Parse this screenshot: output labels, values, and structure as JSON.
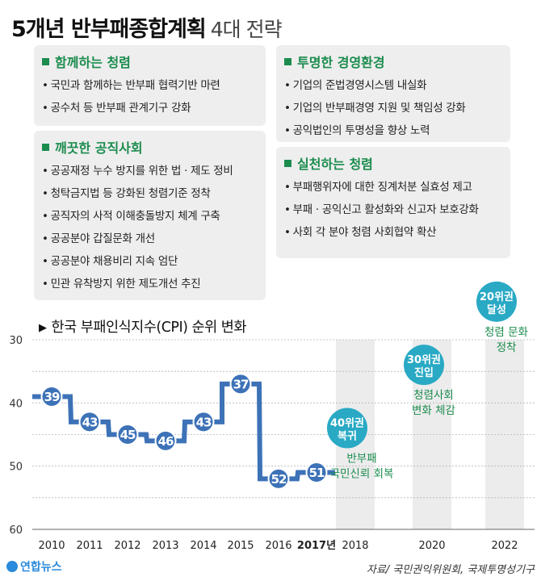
{
  "title": "5개년 반부패종합계획",
  "subtitle": "4대 전략",
  "strategies": [
    {
      "heading": "함께하는 청렴",
      "items": [
        "국민과 함께하는 반부패 협력기반 마련",
        "공수처 등 반부패 관계기구 강화"
      ]
    },
    {
      "heading": "깨끗한 공직사회",
      "items": [
        "공공재정 누수 방지를 위한 법 · 제도 정비",
        "청탁금지법 등 강화된 청렴기준 정착",
        "공직자의 사적 이해충돌방지 체계 구축",
        "공공분야 갑질문화 개선",
        "공공분야 채용비리 지속 엄단",
        "민관 유착방지 위한 제도개선 추진"
      ]
    },
    {
      "heading": "투명한 경영환경",
      "items": [
        "기업의 준법경영시스템 내실화",
        "기업의 반부패경영 지원 및 책임성 강화",
        "공익법인의 투명성을 향상 노력"
      ]
    },
    {
      "heading": "실천하는 청렴",
      "items": [
        "부패행위자에 대한 징계처분 실효성 제고",
        "부패 · 공익신고 활성화와 신고자 보호강화",
        "사회 각 분야 청렴 사회협약 확산"
      ]
    }
  ],
  "chart_data": {
    "type": "line",
    "title": "한국 부패인식지수(CPI) 순위 변화",
    "x": [
      "2010",
      "2011",
      "2012",
      "2013",
      "2014",
      "2015",
      "2016",
      "2017년"
    ],
    "values": [
      39,
      43,
      45,
      46,
      43,
      37,
      52,
      51
    ],
    "ylim": [
      30,
      60
    ],
    "yticks": [
      30,
      40,
      50,
      60
    ],
    "inverted_y": true,
    "future_x": [
      "2018",
      "2020",
      "2022"
    ],
    "targets": [
      {
        "label_line1": "40위권",
        "label_line2": "복귀",
        "year": "2018",
        "rank": 45,
        "note1": "반부패",
        "note2": "국민신뢰 회복"
      },
      {
        "label_line1": "30위권",
        "label_line2": "진입",
        "year": "2020",
        "rank": 35,
        "note1": "청렴사회",
        "note2": "변화 체감"
      },
      {
        "label_line1": "20위권",
        "label_line2": "달성",
        "year": "2022",
        "rank": 25,
        "note1": "청렴 문화",
        "note2": "정착"
      }
    ],
    "colors": {
      "actual": "#3d72b7",
      "target": "#29a9c4",
      "note": "#1b8c4e"
    }
  },
  "footer": {
    "logo": "연합뉴스",
    "source": "자료/ 국민권익위원회, 국제투명성기구"
  }
}
